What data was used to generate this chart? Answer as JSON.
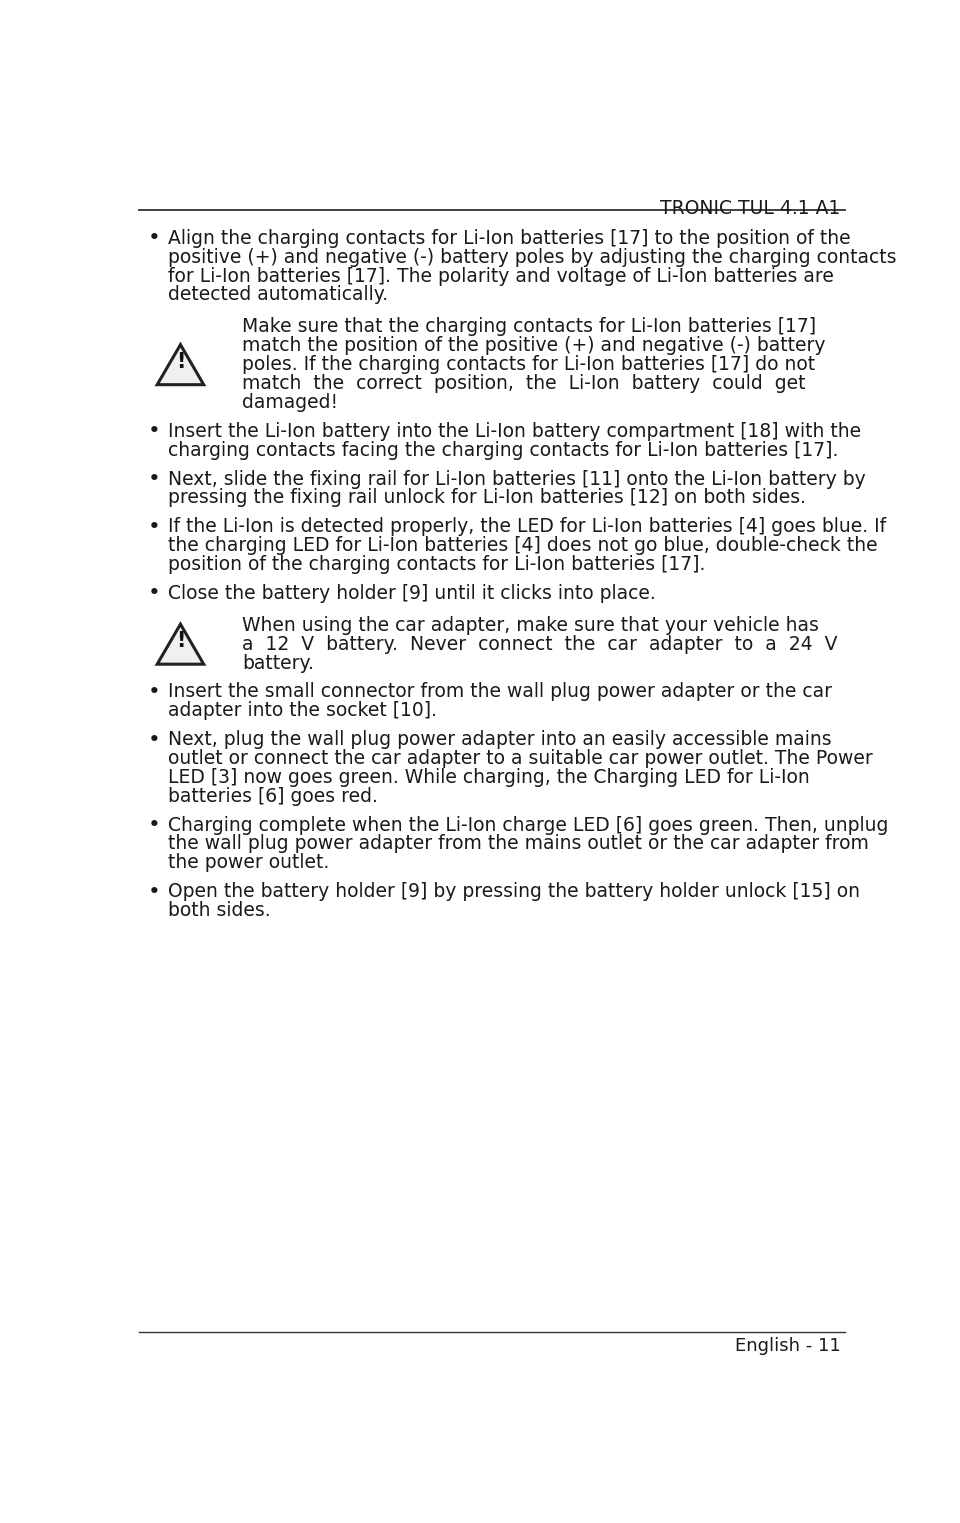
{
  "title": "TRONIC TUL 4.1 A1",
  "footer": "English - 11",
  "bg_color": "#ffffff",
  "text_color": "#1a1a1a",
  "title_fontsize": 13.5,
  "body_fontsize": 13.5,
  "bullet_items": [
    [
      "Align the charging contacts for Li-Ion batteries [17] to the position of the",
      "positive (+) and negative (-) battery poles by adjusting the charging contacts",
      "for Li-Ion batteries [17]. The polarity and voltage of Li-Ion batteries are",
      "detected automatically."
    ],
    [
      "Insert the Li-Ion battery into the Li-Ion battery compartment [18] with the",
      "charging contacts facing the charging contacts for Li-Ion batteries [17]."
    ],
    [
      "Next, slide the fixing rail for Li-Ion batteries [11] onto the Li-Ion battery by",
      "pressing the fixing rail unlock for Li-Ion batteries [12] on both sides."
    ],
    [
      "If the Li-Ion is detected properly, the LED for Li-Ion batteries [4] goes blue. If",
      "the charging LED for Li-Ion batteries [4] does not go blue, double-check the",
      "position of the charging contacts for Li-Ion batteries [17]."
    ],
    [
      "Close the battery holder [9] until it clicks into place."
    ],
    [
      "Insert the small connector from the wall plug power adapter or the car",
      "adapter into the socket [10]."
    ],
    [
      "Next, plug the wall plug power adapter into an easily accessible mains",
      "outlet or connect the car adapter to a suitable car power outlet. The Power",
      "LED [3] now goes green. While charging, the Charging LED for Li-Ion",
      "batteries [6] goes red."
    ],
    [
      "Charging complete when the Li-Ion charge LED [6] goes green. Then, unplug",
      "the wall plug power adapter from the mains outlet or the car adapter from",
      "the power outlet."
    ],
    [
      "Open the battery holder [9] by pressing the battery holder unlock [15] on",
      "both sides."
    ]
  ],
  "warning_blocks": [
    {
      "after_bullet": 0,
      "lines": [
        "Make sure that the charging contacts for Li-Ion batteries [17]",
        "match the position of the positive (+) and negative (-) battery",
        "poles. If the charging contacts for Li-Ion batteries [17] do not",
        "match  the  correct  position,  the  Li-Ion  battery  could  get",
        "damaged!"
      ]
    },
    {
      "after_bullet": 4,
      "lines": [
        "When using the car adapter, make sure that your vehicle has",
        "a  12  V  battery.  Never  connect  the  car  adapter  to  a  24  V",
        "battery."
      ]
    }
  ]
}
